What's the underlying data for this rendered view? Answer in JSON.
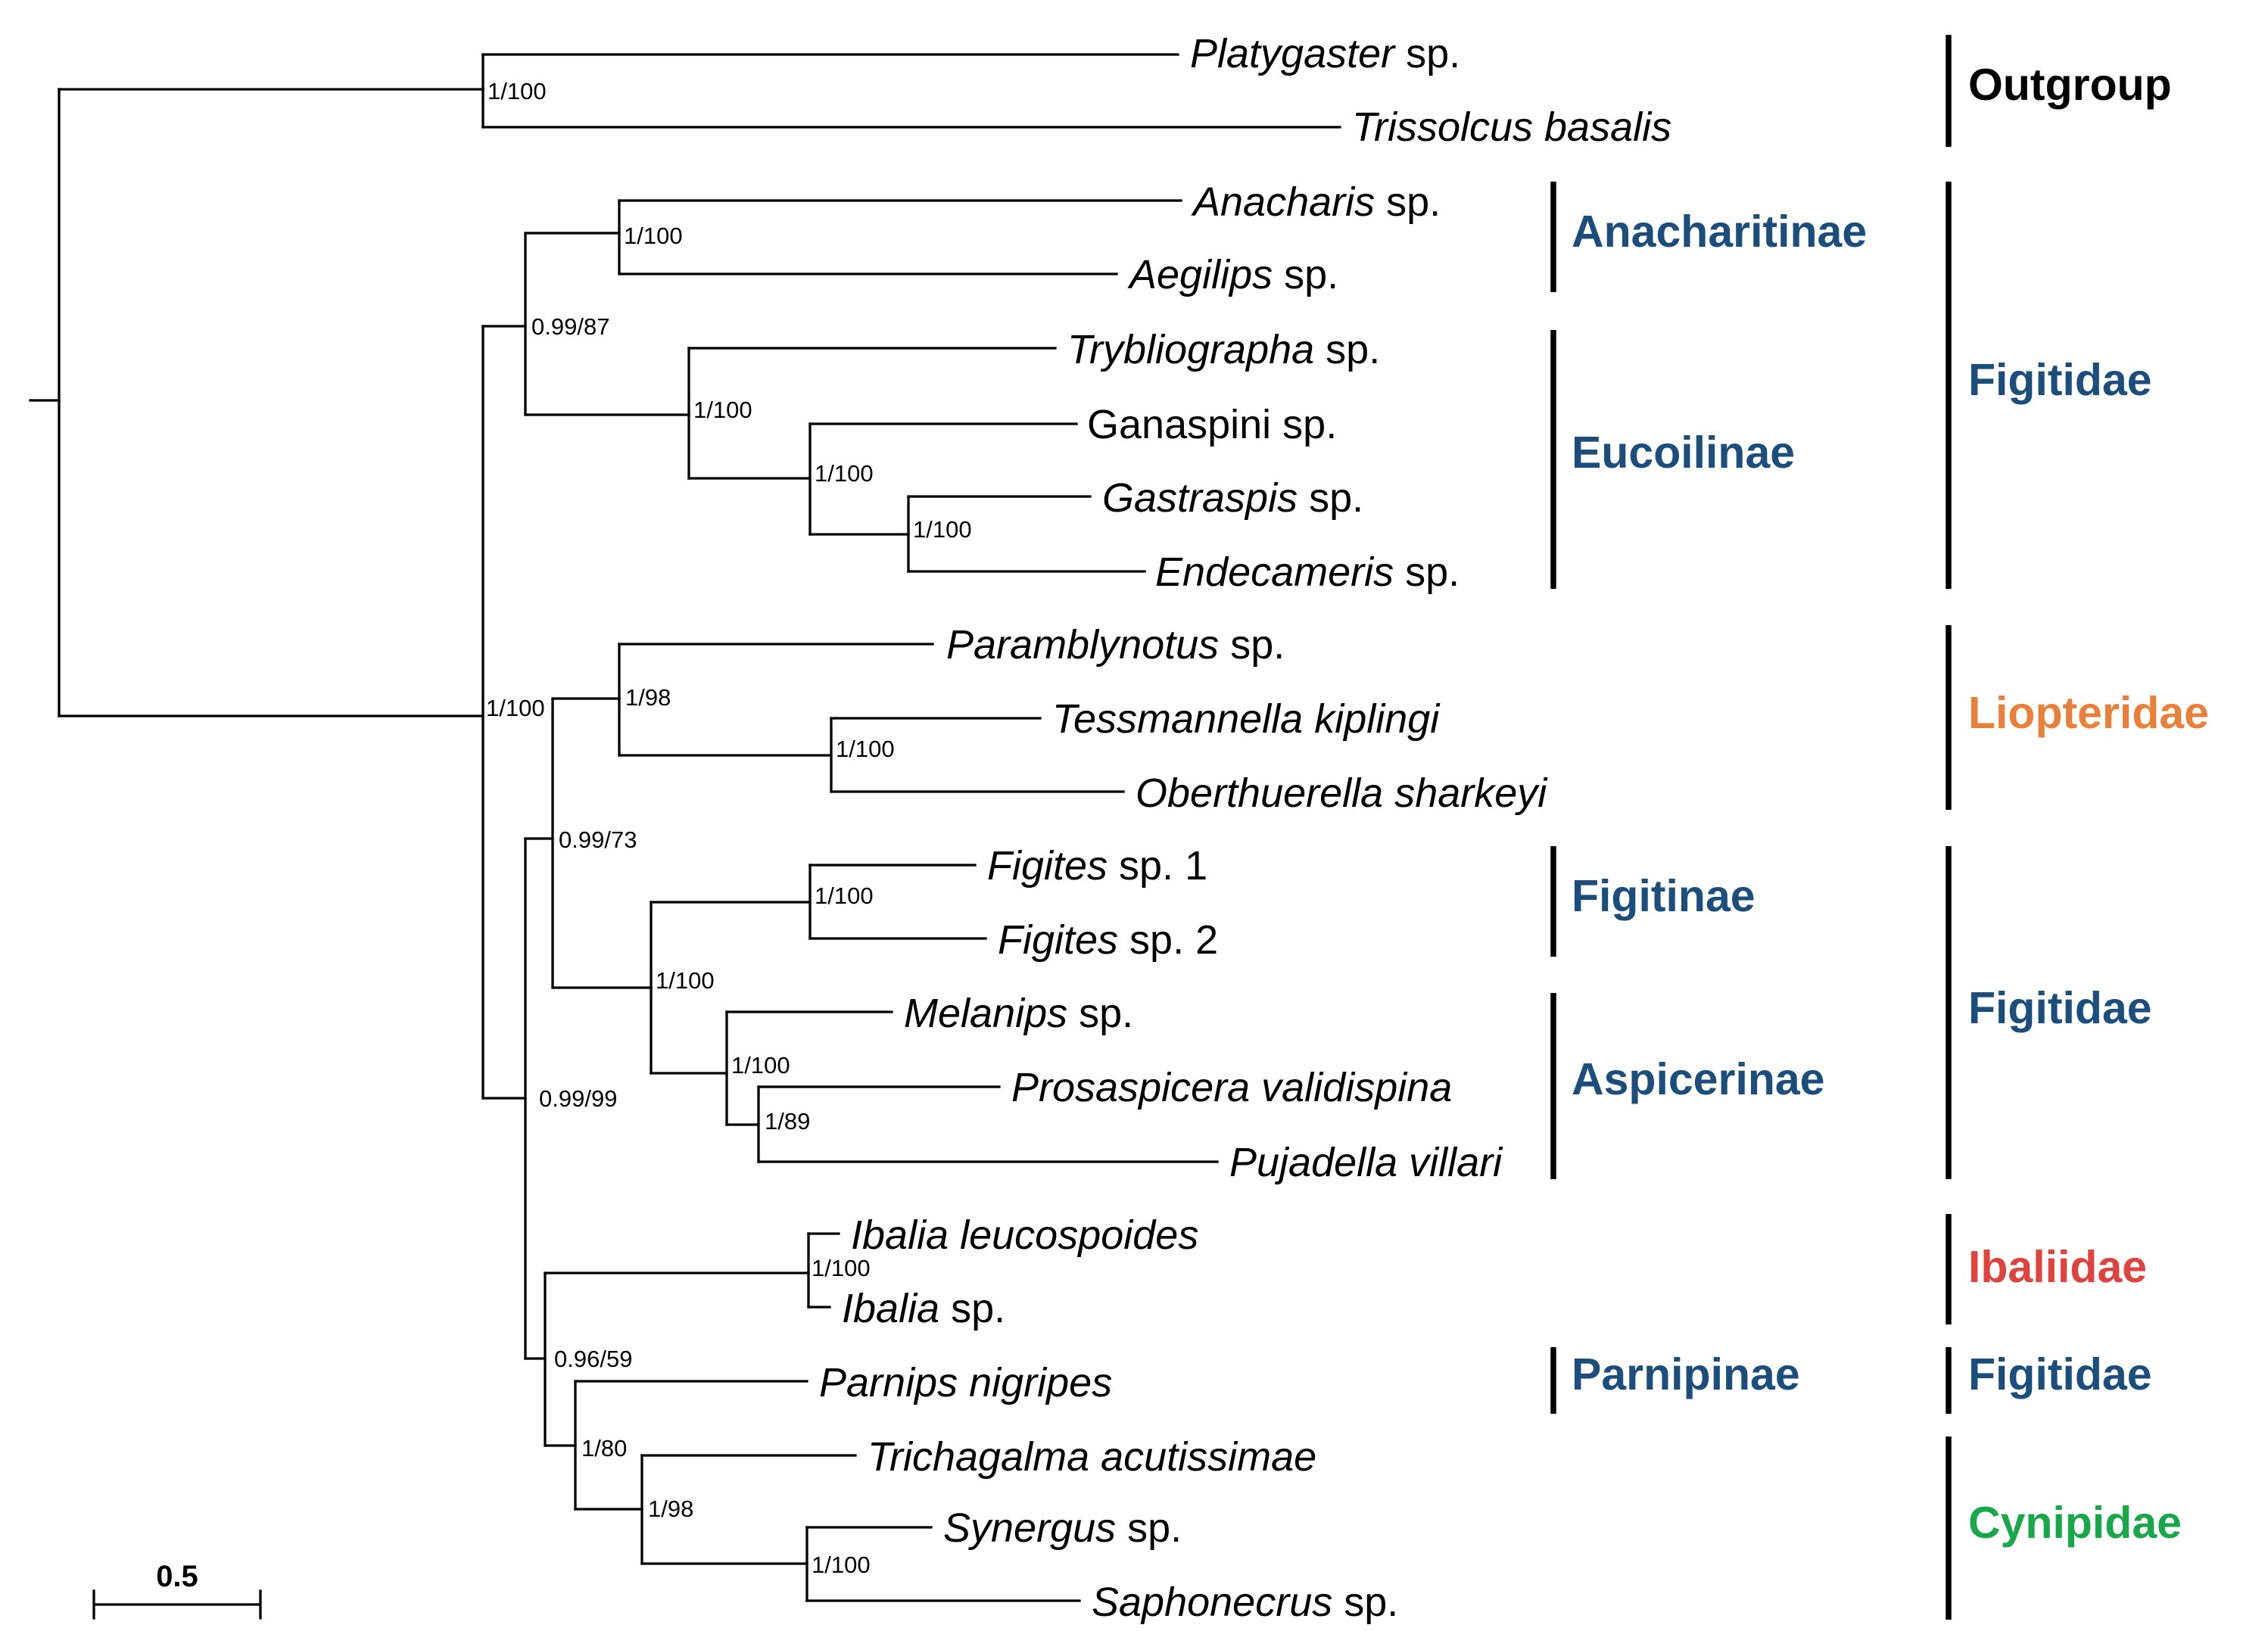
{
  "figure": "Phylogenetic tree of Figitidae, Liopteridae, Ibaliidae and Cynipidae with outgroup",
  "colors": {
    "figitidae": "#1c4e7d",
    "liopteridae": "#e9803a",
    "ibaliidae": "#e0423e",
    "cynipidae": "#18a84a",
    "outgroup": "#000000"
  },
  "taxa": [
    {
      "id": "platygaster",
      "italic": "Platygaster",
      "rest": " sp."
    },
    {
      "id": "trissolcus",
      "italic": "Trissolcus basalis",
      "rest": ""
    },
    {
      "id": "anacharis",
      "italic": "Anacharis",
      "rest": " sp."
    },
    {
      "id": "aegilips",
      "italic": "Aegilips",
      "rest": " sp."
    },
    {
      "id": "trybliographa",
      "italic": "Trybliographa",
      "rest": " sp."
    },
    {
      "id": "ganaspini",
      "italic": "",
      "rest": "Ganaspini sp."
    },
    {
      "id": "gastraspis",
      "italic": "Gastraspis",
      "rest": " sp."
    },
    {
      "id": "endecameris",
      "italic": "Endecameris",
      "rest": " sp."
    },
    {
      "id": "paramblynotus",
      "italic": "Paramblynotus",
      "rest": " sp."
    },
    {
      "id": "tessmannella",
      "italic": "Tessmannella kiplingi",
      "rest": ""
    },
    {
      "id": "oberthuerella",
      "italic": "Oberthuerella sharkeyi",
      "rest": ""
    },
    {
      "id": "figites1",
      "italic": "Figites",
      "rest": " sp. 1"
    },
    {
      "id": "figites2",
      "italic": "Figites",
      "rest": " sp. 2"
    },
    {
      "id": "melanips",
      "italic": "Melanips",
      "rest": " sp."
    },
    {
      "id": "prosaspicera",
      "italic": "Prosaspicera validispina",
      "rest": ""
    },
    {
      "id": "pujadella",
      "italic": "Pujadella villari",
      "rest": ""
    },
    {
      "id": "ibalia_leuco",
      "italic": "Ibalia leucospoides",
      "rest": ""
    },
    {
      "id": "ibalia_sp",
      "italic": "Ibalia",
      "rest": " sp."
    },
    {
      "id": "parnips",
      "italic": "Parnips nigripes",
      "rest": ""
    },
    {
      "id": "trichagalma",
      "italic": "Trichagalma acutissimae",
      "rest": ""
    },
    {
      "id": "synergus",
      "italic": "Synergus",
      "rest": " sp."
    },
    {
      "id": "saphonecrus",
      "italic": "Saphonecrus",
      "rest": " sp."
    }
  ],
  "supports": [
    {
      "id": "outgroup_node",
      "label": "1/100"
    },
    {
      "id": "anacharitinae_node",
      "label": "1/100"
    },
    {
      "id": "figitidae_a_node",
      "label": "0.99/87"
    },
    {
      "id": "eucoilinae_node",
      "label": "1/100"
    },
    {
      "id": "ganaspini_node",
      "label": "1/100"
    },
    {
      "id": "gastraspis_node",
      "label": "1/100"
    },
    {
      "id": "ingroup_node",
      "label": "1/100"
    },
    {
      "id": "liopteridae_node",
      "label": "1/98"
    },
    {
      "id": "tessmannella_node",
      "label": "1/100"
    },
    {
      "id": "liop_fig_node",
      "label": "0.99/73"
    },
    {
      "id": "figitinae_node",
      "label": "1/100"
    },
    {
      "id": "figitinae_aspicerinae_node",
      "label": "1/100"
    },
    {
      "id": "aspicerinae_node",
      "label": "1/100"
    },
    {
      "id": "prosaspicera_node",
      "label": "1/89"
    },
    {
      "id": "lower_clade_node",
      "label": "0.99/99"
    },
    {
      "id": "ibalia_node",
      "label": "1/100"
    },
    {
      "id": "ibal_cyn_node",
      "label": "0.96/59"
    },
    {
      "id": "parnips_cyn_node",
      "label": "1/80"
    },
    {
      "id": "cynipidae_node",
      "label": "1/98"
    },
    {
      "id": "synergus_node",
      "label": "1/100"
    }
  ],
  "subfamilies": [
    {
      "id": "anacharitinae",
      "label": "Anacharitinae"
    },
    {
      "id": "eucoilinae",
      "label": "Eucoilinae"
    },
    {
      "id": "figitinae",
      "label": "Figitinae"
    },
    {
      "id": "aspicerinae",
      "label": "Aspicerinae"
    },
    {
      "id": "parnipinae",
      "label": "Parnipinae"
    }
  ],
  "families": [
    {
      "id": "outgroup",
      "label": "Outgroup"
    },
    {
      "id": "figitidae_1",
      "label": "Figitidae"
    },
    {
      "id": "liopteridae",
      "label": "Liopteridae"
    },
    {
      "id": "figitidae_2",
      "label": "Figitidae"
    },
    {
      "id": "ibaliidae",
      "label": "Ibaliidae"
    },
    {
      "id": "figitidae_3",
      "label": "Figitidae"
    },
    {
      "id": "cynipidae",
      "label": "Cynipidae"
    }
  ],
  "scale_bar": {
    "label": "0.5",
    "length": 0.5
  }
}
